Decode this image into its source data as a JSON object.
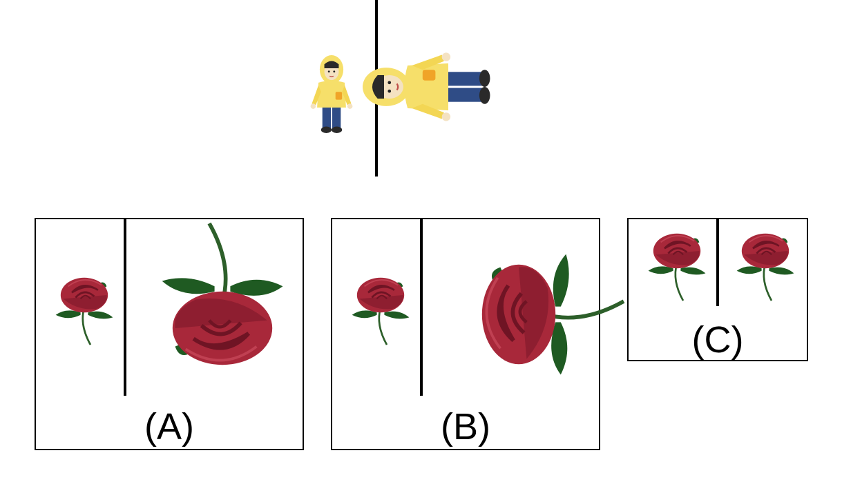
{
  "example": {
    "subject_icon": "child-in-raincoat",
    "transform": "larger-and-rotated"
  },
  "options": [
    {
      "label": "(A)",
      "subject_icon": "rose"
    },
    {
      "label": "(B)",
      "subject_icon": "rose"
    },
    {
      "label": "(C)",
      "subject_icon": "rose"
    }
  ],
  "colors": {
    "line": "#000000",
    "raincoat": "#f6df6a",
    "jeans": "#2f4c86",
    "patch": "#f0a428",
    "rose": "#a8283a",
    "rose_dark": "#7d1626",
    "leaf": "#1f5a22"
  }
}
